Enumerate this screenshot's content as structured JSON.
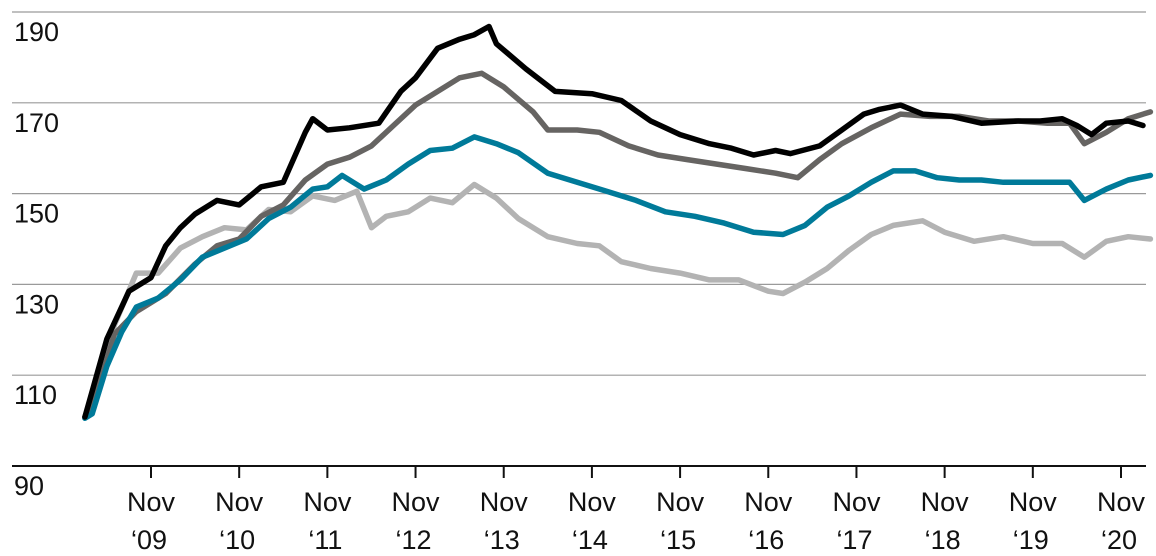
{
  "chart_data": {
    "type": "line",
    "title": "",
    "xlabel": "",
    "ylabel": "",
    "ylim": [
      90,
      190
    ],
    "xlim": [
      "2009-01",
      "2021-03"
    ],
    "yticks": [
      "110",
      "130",
      "150",
      "170",
      "190"
    ],
    "y_baseline_label": "90",
    "xticks": [
      {
        "month": "Nov",
        "year": "‘09",
        "date": "2009-11"
      },
      {
        "month": "Nov",
        "year": "‘10",
        "date": "2010-11"
      },
      {
        "month": "Nov",
        "year": "‘11",
        "date": "2011-11"
      },
      {
        "month": "Nov",
        "year": "‘12",
        "date": "2012-11"
      },
      {
        "month": "Nov",
        "year": "‘13",
        "date": "2013-11"
      },
      {
        "month": "Nov",
        "year": "‘14",
        "date": "2014-11"
      },
      {
        "month": "Nov",
        "year": "‘15",
        "date": "2015-11"
      },
      {
        "month": "Nov",
        "year": "‘16",
        "date": "2016-11"
      },
      {
        "month": "Nov",
        "year": "‘17",
        "date": "2017-11"
      },
      {
        "month": "Nov",
        "year": "‘18",
        "date": "2018-11"
      },
      {
        "month": "Nov",
        "year": "‘19",
        "date": "2019-11"
      },
      {
        "month": "Nov",
        "year": "‘20",
        "date": "2020-11"
      }
    ],
    "grid": true,
    "legend": "none",
    "colors": {
      "black": "#000000",
      "dark_gray": "#666462",
      "teal": "#007a99",
      "light_gray": "#b3b3b3",
      "grid": "#9a9a9a",
      "axis": "#111111"
    },
    "series": [
      {
        "color": "#000000",
        "points": [
          [
            "2009-02",
            100.8
          ],
          [
            "2009-03",
            106.5
          ],
          [
            "2009-05",
            118
          ],
          [
            "2009-08",
            128.5
          ],
          [
            "2009-11",
            131.5
          ],
          [
            "2010-01",
            138.5
          ],
          [
            "2010-03",
            142.5
          ],
          [
            "2010-05",
            145.5
          ],
          [
            "2010-08",
            148.5
          ],
          [
            "2010-11",
            147.5
          ],
          [
            "2011-02",
            151.5
          ],
          [
            "2011-05",
            152.5
          ],
          [
            "2011-08",
            163.5
          ],
          [
            "2011-09",
            166.5
          ],
          [
            "2011-11",
            164
          ],
          [
            "2012-02",
            164.5
          ],
          [
            "2012-06",
            165.5
          ],
          [
            "2012-09",
            172.5
          ],
          [
            "2012-11",
            175.5
          ],
          [
            "2013-02",
            182
          ],
          [
            "2013-05",
            184
          ],
          [
            "2013-07",
            185
          ],
          [
            "2013-09",
            186.8
          ],
          [
            "2013-10",
            183
          ],
          [
            "2014-02",
            177.5
          ],
          [
            "2014-06",
            172.5
          ],
          [
            "2014-11",
            172
          ],
          [
            "2015-03",
            170.5
          ],
          [
            "2015-07",
            166
          ],
          [
            "2015-11",
            163
          ],
          [
            "2016-03",
            161
          ],
          [
            "2016-06",
            160
          ],
          [
            "2016-09",
            158.5
          ],
          [
            "2016-12",
            159.5
          ],
          [
            "2017-02",
            158.8
          ],
          [
            "2017-06",
            160.5
          ],
          [
            "2017-09",
            164
          ],
          [
            "2017-12",
            167.5
          ],
          [
            "2018-02",
            168.5
          ],
          [
            "2018-05",
            169.5
          ],
          [
            "2018-08",
            167.5
          ],
          [
            "2018-12",
            167
          ],
          [
            "2019-04",
            165.5
          ],
          [
            "2019-09",
            166
          ],
          [
            "2019-12",
            166
          ],
          [
            "2020-03",
            166.5
          ],
          [
            "2020-05",
            165
          ],
          [
            "2020-07",
            163
          ],
          [
            "2020-09",
            165.5
          ],
          [
            "2020-12",
            166
          ],
          [
            "2021-02",
            165
          ]
        ]
      },
      {
        "color": "#666462",
        "points": [
          [
            "2009-02",
            100.8
          ],
          [
            "2009-04",
            108
          ],
          [
            "2009-06",
            119
          ],
          [
            "2009-09",
            124
          ],
          [
            "2010-01",
            128
          ],
          [
            "2010-05",
            134.5
          ],
          [
            "2010-08",
            138.5
          ],
          [
            "2010-11",
            140
          ],
          [
            "2011-02",
            145
          ],
          [
            "2011-05",
            147.5
          ],
          [
            "2011-08",
            153
          ],
          [
            "2011-11",
            156.5
          ],
          [
            "2012-02",
            158
          ],
          [
            "2012-05",
            160.5
          ],
          [
            "2012-08",
            165
          ],
          [
            "2012-11",
            169.5
          ],
          [
            "2013-02",
            172.5
          ],
          [
            "2013-05",
            175.5
          ],
          [
            "2013-08",
            176.5
          ],
          [
            "2013-11",
            173.5
          ],
          [
            "2014-03",
            168
          ],
          [
            "2014-05",
            164
          ],
          [
            "2014-09",
            164
          ],
          [
            "2014-12",
            163.5
          ],
          [
            "2015-04",
            160.5
          ],
          [
            "2015-08",
            158.5
          ],
          [
            "2015-12",
            157.5
          ],
          [
            "2016-04",
            156.5
          ],
          [
            "2016-08",
            155.5
          ],
          [
            "2016-12",
            154.5
          ],
          [
            "2017-03",
            153.5
          ],
          [
            "2017-06",
            157.5
          ],
          [
            "2017-09",
            161
          ],
          [
            "2018-01",
            164.5
          ],
          [
            "2018-05",
            167.5
          ],
          [
            "2018-09",
            167
          ],
          [
            "2019-01",
            167
          ],
          [
            "2019-05",
            166
          ],
          [
            "2019-09",
            166
          ],
          [
            "2020-01",
            165.5
          ],
          [
            "2020-04",
            165.5
          ],
          [
            "2020-06",
            161
          ],
          [
            "2020-09",
            163.5
          ],
          [
            "2020-12",
            166.5
          ],
          [
            "2021-03",
            168
          ]
        ]
      },
      {
        "color": "#007a99",
        "points": [
          [
            "2009-02",
            100.5
          ],
          [
            "2009-03",
            101.5
          ],
          [
            "2009-05",
            112
          ],
          [
            "2009-07",
            119.5
          ],
          [
            "2009-09",
            125
          ],
          [
            "2009-12",
            127
          ],
          [
            "2010-03",
            131
          ],
          [
            "2010-06",
            136
          ],
          [
            "2010-09",
            138
          ],
          [
            "2010-12",
            140
          ],
          [
            "2011-03",
            144.5
          ],
          [
            "2011-06",
            147
          ],
          [
            "2011-09",
            151
          ],
          [
            "2011-11",
            151.5
          ],
          [
            "2012-01",
            154
          ],
          [
            "2012-04",
            151
          ],
          [
            "2012-07",
            153
          ],
          [
            "2012-10",
            156.5
          ],
          [
            "2013-01",
            159.5
          ],
          [
            "2013-04",
            160
          ],
          [
            "2013-07",
            162.5
          ],
          [
            "2013-10",
            161
          ],
          [
            "2014-01",
            159
          ],
          [
            "2014-05",
            154.5
          ],
          [
            "2014-09",
            152.5
          ],
          [
            "2015-01",
            150.5
          ],
          [
            "2015-05",
            148.5
          ],
          [
            "2015-09",
            146
          ],
          [
            "2016-01",
            145
          ],
          [
            "2016-05",
            143.5
          ],
          [
            "2016-09",
            141.5
          ],
          [
            "2017-01",
            141
          ],
          [
            "2017-04",
            143
          ],
          [
            "2017-07",
            147
          ],
          [
            "2017-10",
            149.5
          ],
          [
            "2018-01",
            152.5
          ],
          [
            "2018-04",
            155
          ],
          [
            "2018-07",
            155
          ],
          [
            "2018-10",
            153.5
          ],
          [
            "2019-01",
            153
          ],
          [
            "2019-04",
            153
          ],
          [
            "2019-07",
            152.5
          ],
          [
            "2019-10",
            152.5
          ],
          [
            "2020-01",
            152.5
          ],
          [
            "2020-04",
            152.5
          ],
          [
            "2020-06",
            148.5
          ],
          [
            "2020-09",
            151
          ],
          [
            "2020-12",
            153
          ],
          [
            "2021-03",
            154
          ]
        ]
      },
      {
        "color": "#b3b3b3",
        "points": [
          [
            "2009-02",
            100.8
          ],
          [
            "2009-04",
            108
          ],
          [
            "2009-06",
            121
          ],
          [
            "2009-09",
            132.5
          ],
          [
            "2009-12",
            132.5
          ],
          [
            "2010-03",
            138
          ],
          [
            "2010-06",
            140.5
          ],
          [
            "2010-09",
            142.5
          ],
          [
            "2010-12",
            142
          ],
          [
            "2011-03",
            146.5
          ],
          [
            "2011-06",
            146
          ],
          [
            "2011-09",
            149.5
          ],
          [
            "2011-12",
            148.5
          ],
          [
            "2012-03",
            150.5
          ],
          [
            "2012-05",
            142.5
          ],
          [
            "2012-07",
            145
          ],
          [
            "2012-10",
            146
          ],
          [
            "2013-01",
            149
          ],
          [
            "2013-04",
            148
          ],
          [
            "2013-07",
            152
          ],
          [
            "2013-10",
            149
          ],
          [
            "2014-01",
            144.5
          ],
          [
            "2014-05",
            140.5
          ],
          [
            "2014-09",
            139
          ],
          [
            "2014-12",
            138.5
          ],
          [
            "2015-03",
            135
          ],
          [
            "2015-07",
            133.5
          ],
          [
            "2015-11",
            132.5
          ],
          [
            "2016-03",
            131
          ],
          [
            "2016-07",
            131
          ],
          [
            "2016-11",
            128.5
          ],
          [
            "2017-01",
            128
          ],
          [
            "2017-04",
            130.5
          ],
          [
            "2017-07",
            133.5
          ],
          [
            "2017-10",
            137.5
          ],
          [
            "2018-01",
            141
          ],
          [
            "2018-04",
            143
          ],
          [
            "2018-08",
            144
          ],
          [
            "2018-11",
            141.5
          ],
          [
            "2019-03",
            139.5
          ],
          [
            "2019-07",
            140.5
          ],
          [
            "2019-11",
            139
          ],
          [
            "2020-03",
            139
          ],
          [
            "2020-06",
            136
          ],
          [
            "2020-09",
            139.5
          ],
          [
            "2020-12",
            140.5
          ],
          [
            "2021-03",
            140
          ]
        ]
      }
    ]
  }
}
